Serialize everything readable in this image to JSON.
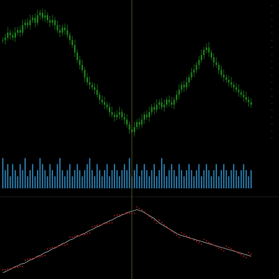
{
  "colors": {
    "background": "#000000",
    "candle": "#1f8f1f",
    "volume": "#2f8fc8",
    "ma": "#d0d0d0",
    "dots": "#c81e1e",
    "crosshair": "#6a6a2a",
    "separator": "#1c1c1c"
  },
  "chart_data": [
    {
      "type": "candlestick",
      "panel": "price",
      "price_ticks": [
        "",
        "",
        "",
        "",
        "",
        "",
        "",
        "",
        "",
        "",
        "",
        "",
        "",
        "",
        "",
        "",
        "",
        "",
        "",
        ""
      ],
      "close": [
        60,
        61,
        63,
        62,
        61,
        63,
        64,
        63,
        66,
        67,
        66,
        68,
        69,
        67,
        70,
        71,
        69,
        70,
        68,
        67,
        68,
        66,
        64,
        63,
        65,
        64,
        62,
        60,
        58,
        55,
        52,
        50,
        48,
        45,
        43,
        42,
        41,
        40,
        38,
        36,
        35,
        34,
        33,
        31,
        30,
        29,
        30,
        31,
        29,
        28,
        26,
        24,
        23,
        25,
        27,
        26,
        28,
        30,
        29,
        31,
        33,
        32,
        34,
        35,
        33,
        34,
        36,
        35,
        34,
        36,
        38,
        40,
        42,
        41,
        43,
        45,
        47,
        48,
        50,
        52,
        54,
        56,
        57,
        55,
        53,
        51,
        50,
        48,
        46,
        45,
        44,
        43,
        42,
        41,
        40,
        39,
        38,
        37,
        36,
        35,
        34
      ],
      "ylim": [
        20,
        75
      ]
    },
    {
      "type": "bar",
      "panel": "volume",
      "values": [
        5,
        3,
        4,
        2,
        4,
        3,
        2,
        4,
        3,
        5,
        2,
        3,
        4,
        2,
        3,
        5,
        4,
        3,
        2,
        4,
        3,
        2,
        4,
        5,
        3,
        2,
        3,
        4,
        2,
        3,
        4,
        3,
        2,
        3,
        4,
        5,
        3,
        2,
        4,
        3,
        2,
        3,
        4,
        2,
        3,
        4,
        3,
        2,
        3,
        4,
        3,
        5,
        2,
        3,
        4,
        2,
        3,
        4,
        3,
        2,
        3,
        4,
        2,
        3,
        5,
        4,
        2,
        3,
        4,
        3,
        2,
        4,
        3,
        2,
        3,
        4,
        3,
        2,
        3,
        4,
        2,
        3,
        4,
        3,
        2,
        3,
        4,
        2,
        3,
        4,
        3,
        2,
        3,
        4,
        3,
        2,
        3,
        4,
        3,
        2,
        3
      ],
      "ylim": [
        0,
        6
      ]
    },
    {
      "type": "line",
      "panel": "indicator",
      "values": [
        5,
        6,
        8,
        9,
        11,
        13,
        14,
        16,
        17,
        18,
        20,
        22,
        23,
        25,
        27,
        28,
        30,
        32,
        33,
        35,
        37,
        38,
        40,
        42,
        44,
        45,
        47,
        49,
        50,
        52,
        54,
        55,
        57,
        58,
        60,
        62,
        63,
        65,
        67,
        68,
        70,
        72,
        73,
        75,
        76,
        78,
        80,
        81,
        83,
        84,
        86,
        87,
        88,
        89,
        90,
        89,
        88,
        86,
        84,
        82,
        80,
        78,
        75,
        72,
        70,
        68,
        66,
        64,
        62,
        60,
        58,
        56,
        55,
        54,
        53,
        52,
        51,
        50,
        49,
        48,
        47,
        46,
        45,
        44,
        43,
        42,
        41,
        40,
        39,
        38,
        37,
        36,
        35,
        34,
        33,
        32,
        31,
        30,
        29,
        28,
        27
      ],
      "ylim": [
        0,
        100
      ]
    }
  ],
  "x_axis": {
    "date_labels": [
      "",
      "",
      "",
      "",
      "",
      "",
      "",
      "",
      "",
      "",
      "",
      ""
    ],
    "highlighted": [
      false,
      false,
      false,
      false,
      false,
      false,
      false,
      false,
      false,
      false,
      false,
      false
    ]
  }
}
